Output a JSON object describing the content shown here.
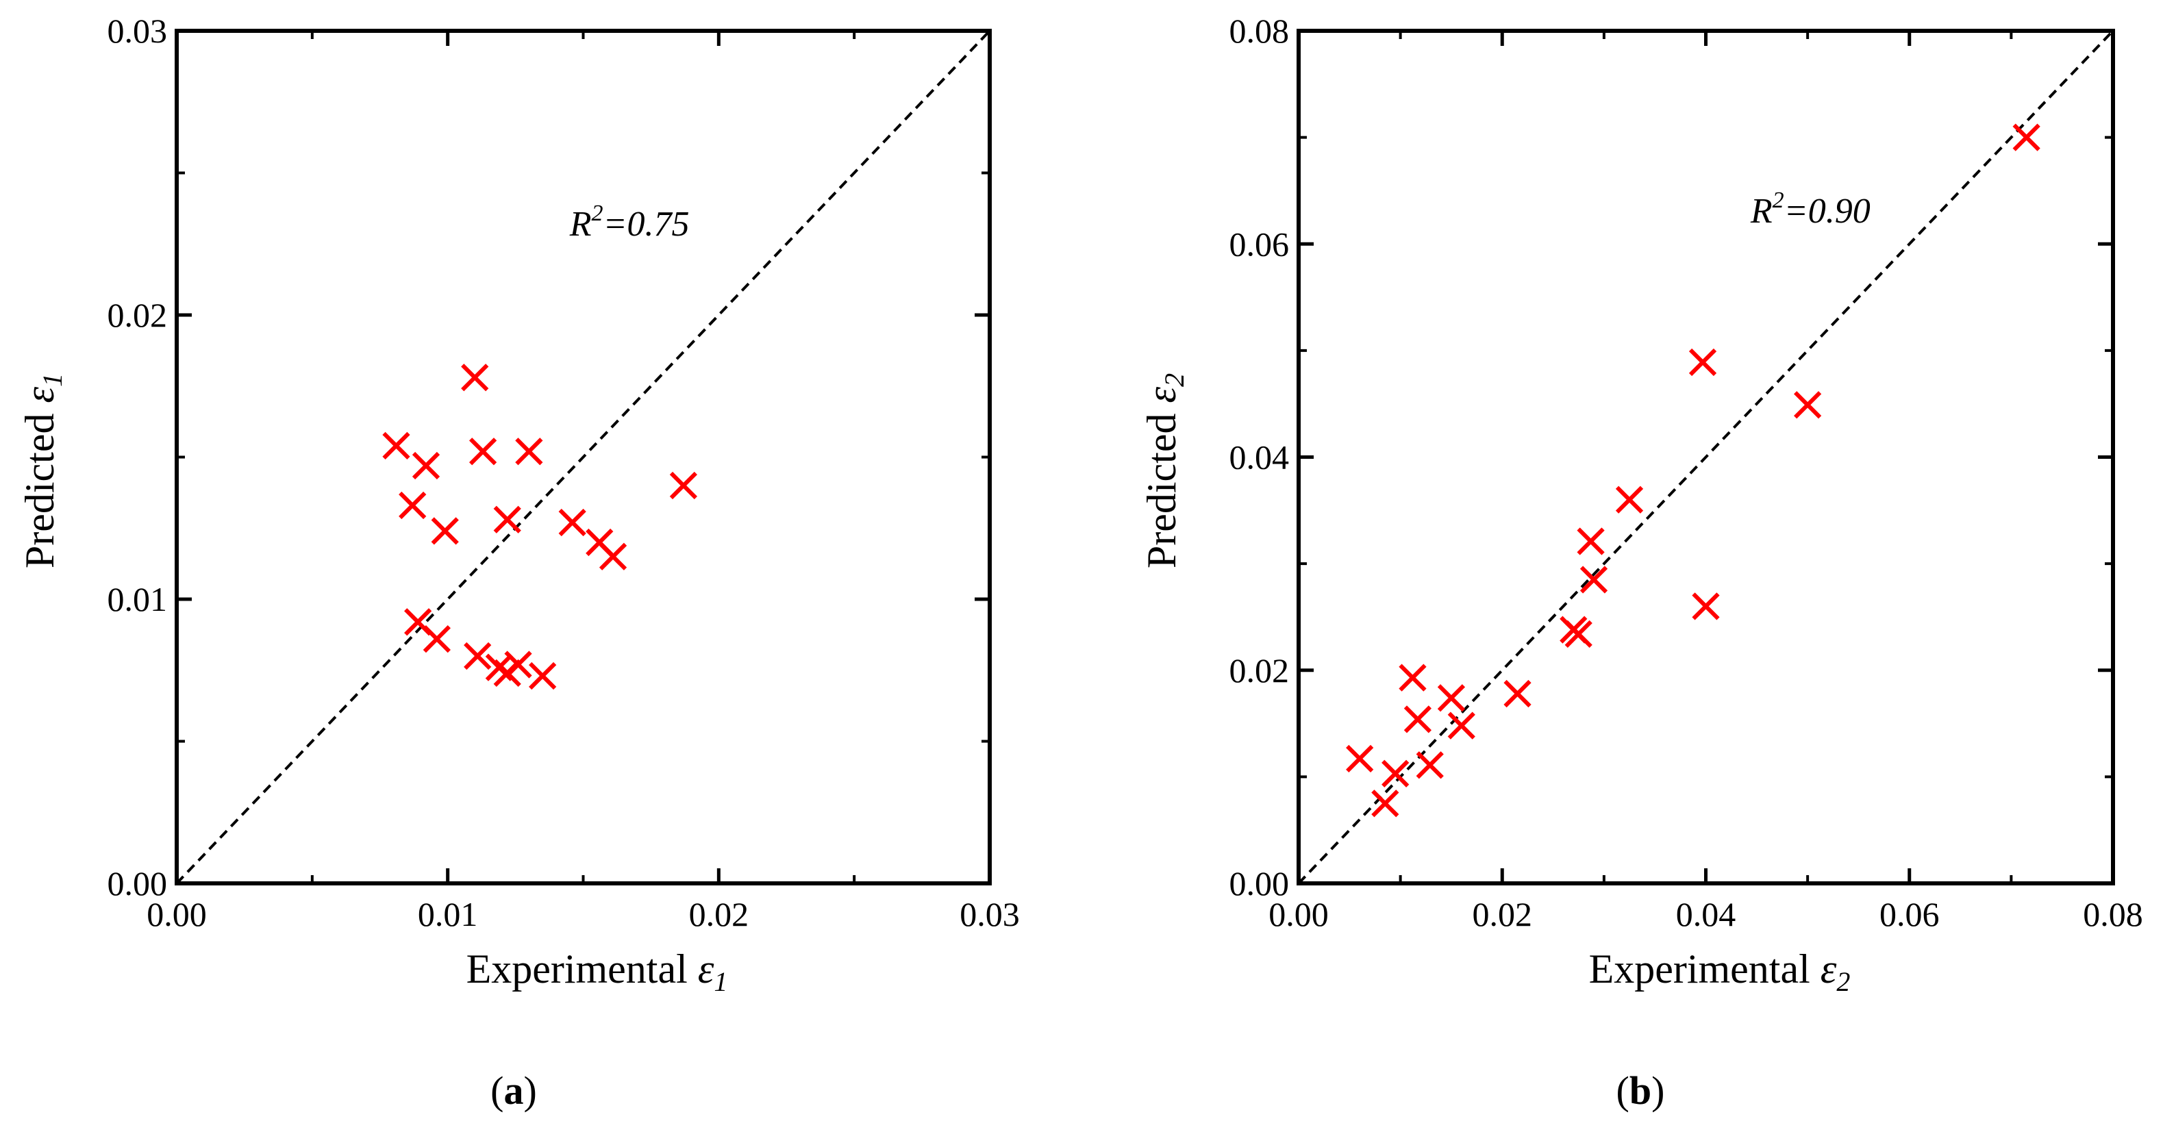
{
  "chart_data": [
    {
      "type": "scatter",
      "panel_label_open": "(",
      "panel_label": "a",
      "panel_label_close": ")",
      "xlabel": "Experimental ",
      "ylabel": "Predicted ",
      "symbol": "ε",
      "subscript": "1",
      "xlim": [
        0,
        0.03
      ],
      "ylim": [
        0,
        0.03
      ],
      "x_ticks": [
        "0.00",
        "0.01",
        "0.02",
        "0.03"
      ],
      "y_ticks": [
        "0.00",
        "0.01",
        "0.02",
        "0.03"
      ],
      "annotation": {
        "r": "R",
        "sup": "2",
        "rest": "=0.75",
        "x": 0.0145,
        "y": 0.0228
      },
      "reference_line": "y=x (dashed)",
      "marker_color": "#ff0000",
      "points": [
        [
          0.0081,
          0.0154
        ],
        [
          0.0092,
          0.0147
        ],
        [
          0.0087,
          0.0133
        ],
        [
          0.0099,
          0.0124
        ],
        [
          0.011,
          0.0178
        ],
        [
          0.0113,
          0.0152
        ],
        [
          0.013,
          0.0152
        ],
        [
          0.0122,
          0.0128
        ],
        [
          0.0146,
          0.0127
        ],
        [
          0.0156,
          0.012
        ],
        [
          0.0161,
          0.0115
        ],
        [
          0.0187,
          0.014
        ],
        [
          0.0089,
          0.0092
        ],
        [
          0.0096,
          0.0086
        ],
        [
          0.0111,
          0.008
        ],
        [
          0.0119,
          0.0076
        ],
        [
          0.0122,
          0.0074
        ],
        [
          0.0126,
          0.0077
        ],
        [
          0.0135,
          0.0073
        ]
      ]
    },
    {
      "type": "scatter",
      "panel_label_open": "(",
      "panel_label": "b",
      "panel_label_close": ")",
      "xlabel": "Experimental ",
      "ylabel": "Predicted ",
      "symbol": "ε",
      "subscript": "2",
      "xlim": [
        0,
        0.08
      ],
      "ylim": [
        0,
        0.08
      ],
      "x_ticks": [
        "0.00",
        "0.02",
        "0.04",
        "0.06",
        "0.08"
      ],
      "y_ticks": [
        "0.00",
        "0.02",
        "0.04",
        "0.06",
        "0.08"
      ],
      "annotation": {
        "r": "R",
        "sup": "2",
        "rest": "=0.90",
        "x": 0.0444,
        "y": 0.062
      },
      "reference_line": "y=x (dashed)",
      "marker_color": "#ff0000",
      "points": [
        [
          0.006,
          0.0117
        ],
        [
          0.0095,
          0.0103
        ],
        [
          0.0085,
          0.0075
        ],
        [
          0.0129,
          0.0111
        ],
        [
          0.0112,
          0.0193
        ],
        [
          0.0117,
          0.0154
        ],
        [
          0.015,
          0.0174
        ],
        [
          0.016,
          0.0148
        ],
        [
          0.0215,
          0.0178
        ],
        [
          0.027,
          0.0238
        ],
        [
          0.0275,
          0.0234
        ],
        [
          0.029,
          0.0285
        ],
        [
          0.0287,
          0.0321
        ],
        [
          0.0325,
          0.036
        ],
        [
          0.0397,
          0.0489
        ],
        [
          0.04,
          0.026
        ],
        [
          0.05,
          0.0449
        ],
        [
          0.0715,
          0.07
        ]
      ]
    }
  ]
}
